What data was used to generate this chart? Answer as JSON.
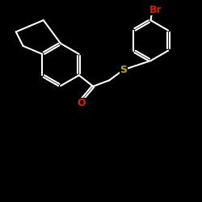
{
  "background_color": "#000000",
  "bond_color": "#ffffff",
  "bond_width": 1.5,
  "O_color": "#dd2200",
  "S_color": "#bbaa00",
  "Br_color": "#cc2200",
  "figsize": [
    2.5,
    2.5
  ],
  "dpi": 100,
  "xlim": [
    0.0,
    10.0
  ],
  "ylim": [
    0.0,
    10.0
  ]
}
